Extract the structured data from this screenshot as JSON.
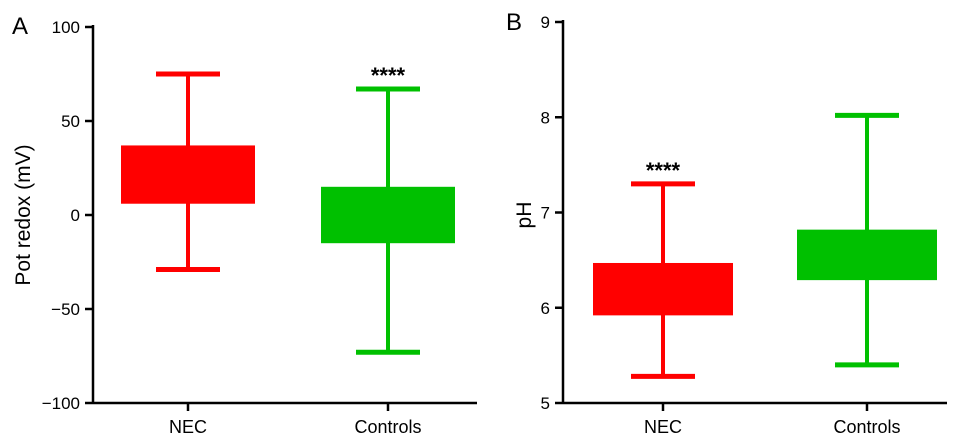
{
  "chart_data": [
    {
      "type": "box",
      "panel": "A",
      "ylabel": "Pot redox (mV)",
      "ylim": [
        -100,
        100
      ],
      "yticks": [
        100,
        50,
        0,
        -50,
        -100
      ],
      "ytick_labels": [
        "100",
        "50",
        "0",
        "−50",
        "−100"
      ],
      "categories": [
        "NEC",
        "Controls"
      ],
      "boxes": [
        {
          "name": "NEC",
          "whisker_high": 75,
          "q3": 37,
          "q1": 6,
          "whisker_low": -29,
          "color": "#ff0000",
          "annotation": ""
        },
        {
          "name": "Controls",
          "whisker_high": 67,
          "q3": 15,
          "q1": -15,
          "whisker_low": -73,
          "color": "#00c000",
          "annotation": "****"
        }
      ]
    },
    {
      "type": "box",
      "panel": "B",
      "ylabel": "pH",
      "ylim": [
        5,
        9
      ],
      "yticks": [
        9,
        8,
        7,
        6,
        5
      ],
      "ytick_labels": [
        "9",
        "8",
        "7",
        "6",
        "5"
      ],
      "categories": [
        "NEC",
        "Controls"
      ],
      "boxes": [
        {
          "name": "NEC",
          "whisker_high": 7.3,
          "q3": 6.47,
          "q1": 5.92,
          "whisker_low": 5.28,
          "color": "#ff0000",
          "annotation": "****"
        },
        {
          "name": "Controls",
          "whisker_high": 8.02,
          "q3": 6.82,
          "q1": 6.29,
          "whisker_low": 5.4,
          "color": "#00c000",
          "annotation": ""
        }
      ]
    }
  ]
}
